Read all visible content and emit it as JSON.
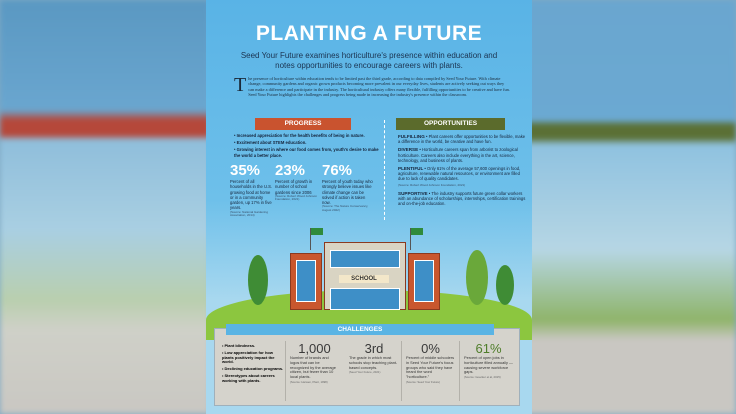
{
  "title": "PLANTING A FUTURE",
  "subtitle": "Seed Your Future examines horticulture's presence within education and notes opportunities to encourage careers with plants.",
  "intro": {
    "dropcap": "T",
    "text": "he presence of horticulture within education tends to be limited past the third grade, according to data compiled by Seed Your Future. With climate change, community gardens and organic grown products becoming more prevalent in our everyday lives, students are actively seeking out ways they can make a difference and participate in the industry. The horticultural industry offers many flexible, fulfilling opportunities to be creative and have fun. Seed Your Future highlights the challenges and progress being made in increasing the industry's presence within the classroom."
  },
  "progress": {
    "header": "PROGRESS",
    "bullets": [
      "• Increased appreciation for the health benefits of being in nature.",
      "• Excitement about STEM education.",
      "• Growing interest in where our food comes from, youth's desire to make the world a better place."
    ],
    "stats": [
      {
        "value": "35%",
        "desc": "Percent of all households in the U.S. growing food at home or in a community garden, up 17% in five years.",
        "source": "(Source: National Gardening Association, 2014)"
      },
      {
        "value": "23%",
        "desc": "Percent of growth in number of school gardens since 2006",
        "source": "(Source: Robert Wood Johnson Foundation, 2021)"
      },
      {
        "value": "76%",
        "desc": "Percent of youth today who strongly believe issues like climate change can be solved if action is taken now.",
        "source": "(Source: The Nature Conservancy, August 2022)"
      }
    ]
  },
  "opportunities": {
    "header": "OPPORTUNITIES",
    "items": [
      {
        "label": "FULFILLING",
        "text": " • Plant careers offer opportunities to be flexible, make a difference in the world, be creative and have fun."
      },
      {
        "label": "DIVERSE",
        "text": " • Horticulture careers span from arborist to zoological horticulture. Careers also include everything in the art, science, technology, and business of plants."
      },
      {
        "label": "PLENTIFUL",
        "text": " • Only 61% of the average 57,600 openings in food, agriculture, renewable natural resources, or environment are filled due to lack of quality candidates.",
        "source": "(Source: Robert Wood Johnson Foundation, 2021)"
      },
      {
        "label": "SUPPORTIVE",
        "text": " • The industry supports future green collar workers with an abundance of scholarships, internships, certification trainings and on-the-job education."
      }
    ]
  },
  "illustration": {
    "sign": "SCHOOL"
  },
  "challenges": {
    "header": "CHALLENGES",
    "bullets": [
      "• Plant blindness.",
      "• Low appreciation for how plants positively impact the world.",
      "• Declining education programs.",
      "• Stereotypes about careers working with plants."
    ],
    "stats": [
      {
        "value": "1,000",
        "desc": "Number of brands and logos that can be recognized by the average citizen, but fewer than 10 local plants.",
        "source": "(Source: Hansen, Plant, 1998)"
      },
      {
        "value": "3rd",
        "desc": "The grade in which most schools stop teaching plant-based concepts.",
        "source": "(Seed Your Future, 2021)"
      },
      {
        "value": "0%",
        "desc": "Percent of middle schoolers in Seed Your Future's focus groups who said they have heard the word \"horticulture.\"",
        "source": "(Source: Seed Your Future)"
      },
      {
        "value": "61%",
        "desc": "Percent of open jobs in horticulture filled annually — causing severe workforce gaps.",
        "source": "(Source: Goecker et al, 2015)"
      }
    ]
  },
  "colors": {
    "sky": "#59b3e6",
    "progress": "#c9532f",
    "opportunities": "#5b6b2c",
    "challenges": "#5ab4e4",
    "panel": "#d5d3cc"
  }
}
